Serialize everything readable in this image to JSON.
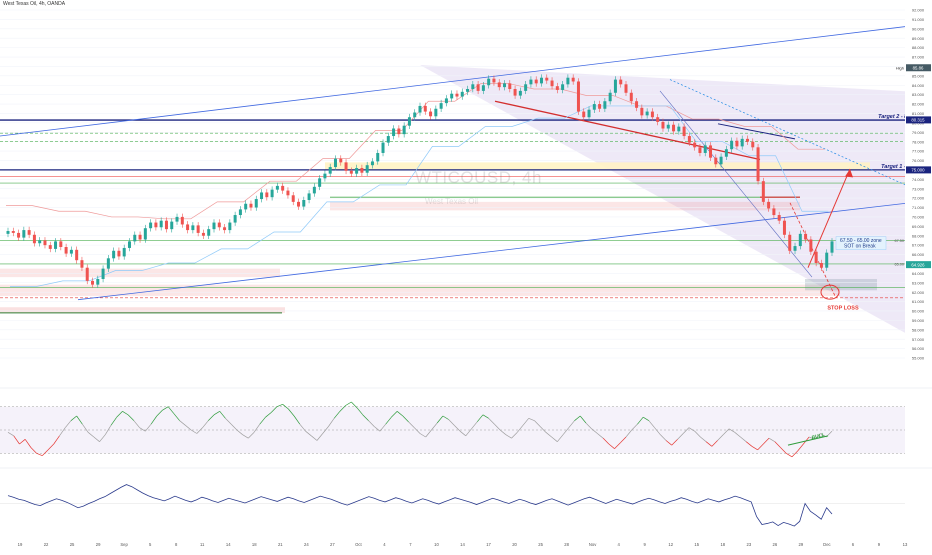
{
  "header": {
    "title": "West Texas Oil, 4h, OANDA"
  },
  "watermark": {
    "symbol": "WTICOUSD, 4h",
    "description": "West Texas Oil"
  },
  "colors": {
    "up_candle": "#26a69a",
    "down_candle": "#ef5350",
    "target_line": "#1a237e",
    "trend_blue": "#4169e1",
    "wedge_fill": "#b39ddb",
    "stop_loss": "#e53935",
    "rsi_line": "#9e9e9e",
    "osc_line": "#2a3a8c"
  },
  "chart_data": [
    {
      "type": "candlestick",
      "title": "WTICOUSD, 4h",
      "ylim": [
        55,
        92
      ],
      "y_ticks": [
        "92.000",
        "91.000",
        "90.000",
        "89.000",
        "88.000",
        "87.000",
        "86.000",
        "85.000",
        "84.000",
        "83.000",
        "82.000",
        "81.000",
        "80.000",
        "79.000",
        "78.000",
        "77.000",
        "76.000",
        "75.000",
        "74.000",
        "73.000",
        "72.000",
        "71.000",
        "70.000",
        "69.000",
        "68.000",
        "67.000",
        "66.000",
        "65.000",
        "64.000",
        "63.000",
        "62.000",
        "61.000",
        "60.000",
        "59.000",
        "58.000",
        "57.000",
        "56.000",
        "55.000"
      ],
      "x_ticks": [
        "19",
        "22",
        "25",
        "29",
        "Sep",
        "5",
        "8",
        "11",
        "14",
        "18",
        "21",
        "24",
        "27",
        "Oct",
        "4",
        "7",
        "10",
        "14",
        "17",
        "20",
        "25",
        "28",
        "Nov",
        "4",
        "9",
        "12",
        "15",
        "18",
        "23",
        "26",
        "29",
        "Dec",
        "6",
        "9",
        "13"
      ],
      "close": [
        68.5,
        68.3,
        67.8,
        68.6,
        68.1,
        67.2,
        67.5,
        67.0,
        66.6,
        67.4,
        66.8,
        66.1,
        66.5,
        65.4,
        64.6,
        63.2,
        62.8,
        63.4,
        64.5,
        65.6,
        66.4,
        65.8,
        66.7,
        67.4,
        68.1,
        67.6,
        68.8,
        69.4,
        68.9,
        69.6,
        68.7,
        69.5,
        70.0,
        69.2,
        68.6,
        69.1,
        68.3,
        68.0,
        68.7,
        69.4,
        68.9,
        68.6,
        69.4,
        70.2,
        70.8,
        71.4,
        71.0,
        71.9,
        72.6,
        72.1,
        72.9,
        73.3,
        72.8,
        72.3,
        71.6,
        71.1,
        71.8,
        72.5,
        73.2,
        74.1,
        74.6,
        75.3,
        76.2,
        75.8,
        74.9,
        74.6,
        75.2,
        74.7,
        75.5,
        75.9,
        76.8,
        77.9,
        78.6,
        79.4,
        78.8,
        79.7,
        80.6,
        81.1,
        81.8,
        81.2,
        80.7,
        81.5,
        82.1,
        82.6,
        83.1,
        82.8,
        83.3,
        83.6,
        84.1,
        83.4,
        84.0,
        84.7,
        84.3,
        83.8,
        84.2,
        83.6,
        82.9,
        83.4,
        84.1,
        84.6,
        84.2,
        84.8,
        84.5,
        83.9,
        83.5,
        84.1,
        84.8,
        84.4,
        81.2,
        80.6,
        81.4,
        82.0,
        81.5,
        82.3,
        83.2,
        84.6,
        84.1,
        83.2,
        82.3,
        81.6,
        80.8,
        81.2,
        80.6,
        80.1,
        79.4,
        79.8,
        79.1,
        79.6,
        78.6,
        77.9,
        77.4,
        76.8,
        77.6,
        76.3,
        75.6,
        76.4,
        77.2,
        78.1,
        77.5,
        78.3,
        78.0,
        77.4,
        73.8,
        71.6,
        70.9,
        70.2,
        69.6,
        68.1,
        66.4,
        66.9,
        68.2,
        67.6,
        66.3,
        65.1,
        64.6,
        66.2,
        67.4
      ]
    },
    {
      "type": "line",
      "title": "",
      "ylim": [
        20,
        80
      ],
      "y_ticks": [
        "80.00",
        "70.00",
        "60.00",
        "50.00",
        "40.00",
        "30.00",
        "20.00"
      ],
      "levels": [
        30,
        50,
        70
      ],
      "values": [
        48,
        45,
        38,
        42,
        35,
        30,
        28,
        33,
        38,
        45,
        52,
        58,
        62,
        55,
        48,
        44,
        40,
        46,
        54,
        61,
        66,
        63,
        58,
        52,
        49,
        55,
        62,
        67,
        70,
        64,
        58,
        54,
        50,
        47,
        52,
        58,
        63,
        66,
        60,
        55,
        50,
        46,
        43,
        48,
        55,
        61,
        65,
        70,
        72,
        68,
        62,
        55,
        49,
        45,
        41,
        47,
        53,
        60,
        66,
        71,
        74,
        69,
        63,
        58,
        53,
        49,
        55,
        61,
        66,
        62,
        57,
        52,
        47,
        44,
        50,
        56,
        62,
        59,
        54,
        49,
        45,
        51,
        57,
        63,
        60,
        55,
        50,
        46,
        43,
        48,
        54,
        60,
        58,
        53,
        48,
        44,
        40,
        46,
        52,
        58,
        62,
        56,
        51,
        47,
        43,
        38,
        34,
        39,
        44,
        50,
        55,
        61,
        58,
        52,
        46,
        41,
        37,
        42,
        47,
        52,
        49,
        44,
        40,
        36,
        41,
        46,
        51,
        48,
        44,
        40,
        36,
        33,
        38,
        43,
        40,
        35,
        30,
        27,
        32,
        38,
        44,
        42,
        47,
        44,
        49
      ],
      "annotations": [
        "BULL"
      ]
    },
    {
      "type": "line",
      "title": "",
      "ylim": [
        -6,
        6
      ],
      "y_ticks": [
        "6.000",
        "4.000",
        "2.000",
        "0.000",
        "-2.000",
        "-4.000",
        "-6.000"
      ],
      "values": [
        1.5,
        1.2,
        0.8,
        0.6,
        0.2,
        -0.2,
        -0.4,
        0.1,
        0.5,
        0.9,
        0.6,
        0.2,
        -0.3,
        -0.8,
        -0.5,
        0.0,
        0.4,
        0.9,
        1.3,
        1.9,
        2.5,
        3.1,
        3.6,
        3.2,
        2.6,
        2.0,
        1.5,
        1.1,
        0.8,
        0.5,
        0.9,
        1.4,
        1.0,
        0.6,
        0.3,
        0.7,
        1.2,
        0.9,
        0.5,
        0.2,
        0.6,
        1.0,
        0.7,
        0.4,
        0.1,
        0.5,
        0.9,
        1.3,
        1.0,
        0.7,
        0.4,
        0.8,
        1.2,
        0.9,
        0.5,
        0.2,
        0.6,
        1.0,
        1.4,
        1.1,
        0.8,
        0.4,
        0.0,
        -0.3,
        0.1,
        0.5,
        0.9,
        1.3,
        1.0,
        0.6,
        0.3,
        0.7,
        1.1,
        0.8,
        0.4,
        0.1,
        0.5,
        0.9,
        0.6,
        0.2,
        -0.1,
        0.3,
        0.7,
        1.1,
        0.8,
        0.5,
        0.2,
        -0.2,
        0.2,
        0.6,
        1.0,
        0.7,
        0.3,
        0.0,
        0.4,
        0.8,
        0.5,
        0.1,
        -0.2,
        0.2,
        0.6,
        0.9,
        0.5,
        0.1,
        -0.3,
        0.1,
        0.5,
        0.9,
        1.2,
        0.8,
        0.4,
        0.0,
        0.4,
        0.8,
        0.5,
        0.2,
        -0.1,
        0.3,
        0.7,
        1.0,
        0.7,
        0.3,
        0.0,
        0.4,
        0.7,
        1.1,
        0.8,
        0.4,
        0.1,
        0.5,
        0.9,
        0.6,
        0.3,
        0.7,
        1.0,
        1.4,
        1.1,
        0.7,
        0.3,
        -2.5,
        -4.0,
        -3.8,
        -3.5,
        -4.2,
        -3.6,
        -3.9,
        -4.3,
        -3.4,
        0.0,
        -1.5,
        -2.2,
        -3.0,
        -0.8,
        -2.0
      ]
    }
  ],
  "annotations": {
    "target_1": "Target 1 - 75.00",
    "target_2": "Target 2 - 80.315",
    "stop_loss": "STOP LOSS",
    "zone_line1": "67.50 - 65.00 zone",
    "zone_line2": "SOT on Break"
  },
  "price_tags": {
    "high_label": "High",
    "high_value": "85.86",
    "t2_value": "80.315",
    "t1_value": "75.000",
    "current": "64.926"
  },
  "zone_ticks": {
    "a": "67.50",
    "b": "65.00"
  }
}
